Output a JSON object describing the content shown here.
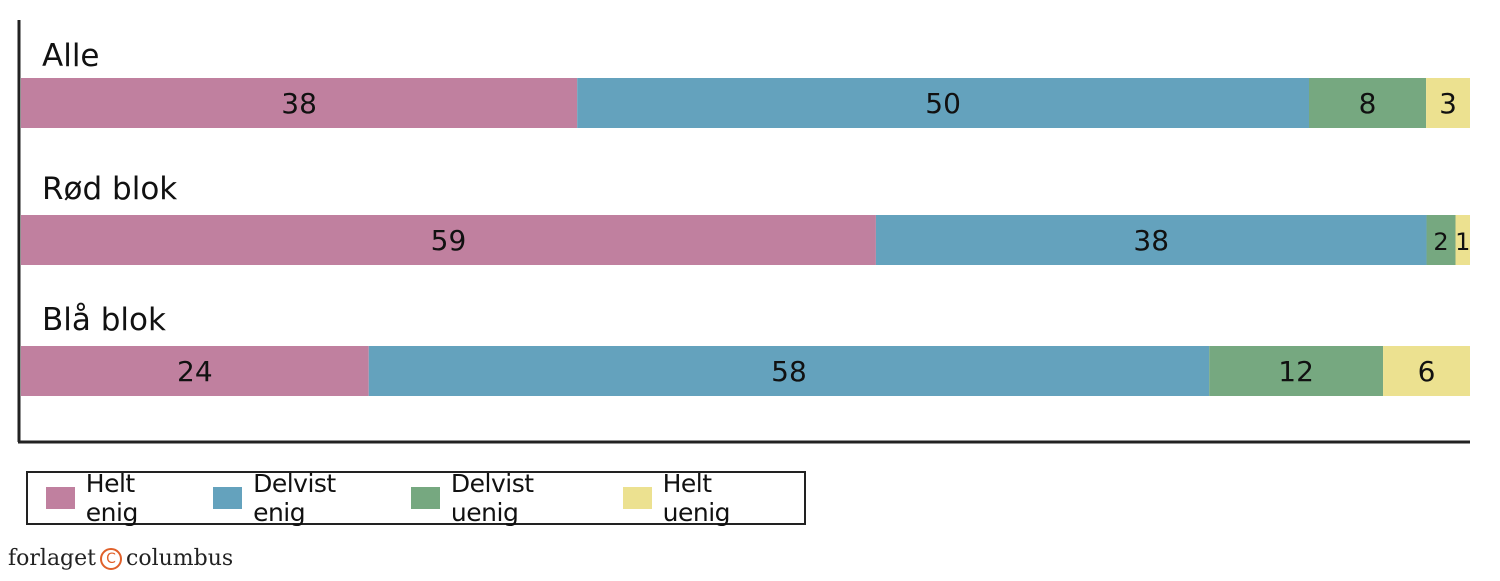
{
  "chart_data": {
    "type": "bar",
    "orientation": "horizontal",
    "stacked": true,
    "categories": [
      "Alle",
      "Rød blok",
      "Blå blok"
    ],
    "series": [
      {
        "name": "Helt enig",
        "color": "#c0809f",
        "values": [
          38,
          59,
          24
        ]
      },
      {
        "name": "Delvist enig",
        "color": "#64a2bd",
        "values": [
          50,
          38,
          58
        ]
      },
      {
        "name": "Delvist uenig",
        "color": "#76a880",
        "values": [
          8,
          2,
          12
        ]
      },
      {
        "name": "Helt uenig",
        "color": "#ece190",
        "values": [
          3,
          1,
          6
        ]
      }
    ],
    "grid": false,
    "legend_position": "bottom-left"
  },
  "footer": {
    "publisher_prefix": "forlaget",
    "publisher_mark": "C",
    "publisher_suffix": "columbus"
  }
}
